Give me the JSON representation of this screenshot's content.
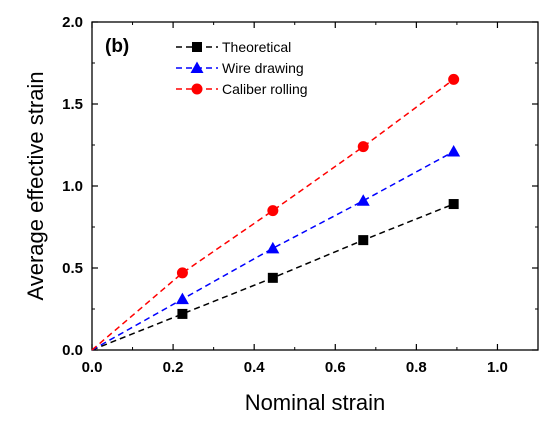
{
  "chart_data": {
    "type": "line",
    "panel_label": "(b)",
    "xlabel": "Nominal strain",
    "ylabel": "Average effective strain",
    "xlim": [
      0.0,
      1.1
    ],
    "ylim": [
      0.0,
      2.0
    ],
    "x_ticks": [
      "0.0",
      "0.2",
      "0.4",
      "0.6",
      "0.8",
      "1.0"
    ],
    "y_ticks": [
      "0.0",
      "0.5",
      "1.0",
      "1.5",
      "2.0"
    ],
    "grid": false,
    "legend_position": "top-left",
    "series": [
      {
        "name": "Theoretical",
        "color": "#000000",
        "marker": "square",
        "x": [
          0.0,
          0.223,
          0.446,
          0.669,
          0.892
        ],
        "y": [
          0.0,
          0.22,
          0.44,
          0.67,
          0.89
        ]
      },
      {
        "name": "Wire drawing",
        "color": "#0000ff",
        "marker": "triangle",
        "x": [
          0.0,
          0.223,
          0.446,
          0.669,
          0.892
        ],
        "y": [
          0.0,
          0.31,
          0.62,
          0.91,
          1.21
        ]
      },
      {
        "name": "Caliber rolling",
        "color": "#ff0000",
        "marker": "circle",
        "x": [
          0.0,
          0.223,
          0.446,
          0.669,
          0.892
        ],
        "y": [
          0.0,
          0.47,
          0.85,
          1.24,
          1.65
        ]
      }
    ]
  }
}
